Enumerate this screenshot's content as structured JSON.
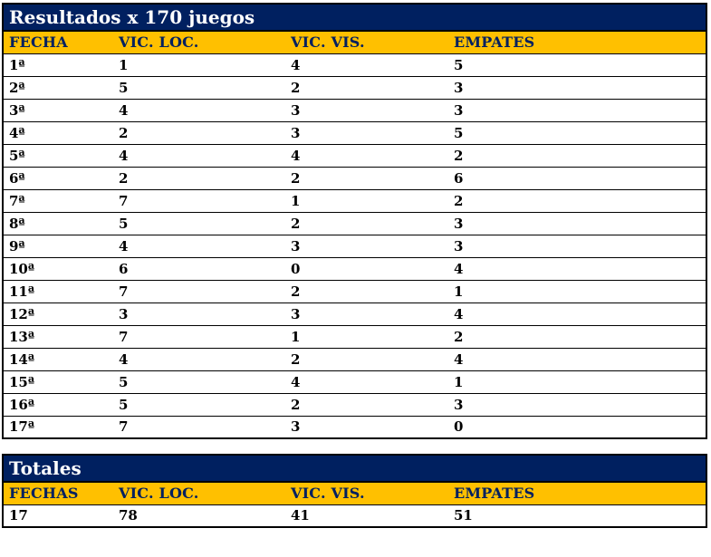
{
  "colors": {
    "navy": "#002060",
    "gold": "#FFC000",
    "border": "#000000",
    "title_text": "#FFFFFF",
    "header_text": "#002060",
    "body_text": "#000000"
  },
  "results_table": {
    "title": "Resultados x 170 juegos",
    "columns": [
      "FECHA",
      "VIC. LOC.",
      "VIC. VIS.",
      "EMPATES"
    ],
    "rows": [
      {
        "fecha": "1ª",
        "vic_loc": "1",
        "vic_vis": "4",
        "empates": "5"
      },
      {
        "fecha": "2ª",
        "vic_loc": "5",
        "vic_vis": "2",
        "empates": "3"
      },
      {
        "fecha": "3ª",
        "vic_loc": "4",
        "vic_vis": "3",
        "empates": "3"
      },
      {
        "fecha": "4ª",
        "vic_loc": "2",
        "vic_vis": "3",
        "empates": "5"
      },
      {
        "fecha": "5ª",
        "vic_loc": "4",
        "vic_vis": "4",
        "empates": "2"
      },
      {
        "fecha": "6ª",
        "vic_loc": "2",
        "vic_vis": "2",
        "empates": "6"
      },
      {
        "fecha": "7ª",
        "vic_loc": "7",
        "vic_vis": "1",
        "empates": "2"
      },
      {
        "fecha": "8ª",
        "vic_loc": "5",
        "vic_vis": "2",
        "empates": "3"
      },
      {
        "fecha": "9ª",
        "vic_loc": "4",
        "vic_vis": "3",
        "empates": "3"
      },
      {
        "fecha": "10ª",
        "vic_loc": "6",
        "vic_vis": "0",
        "empates": "4"
      },
      {
        "fecha": "11ª",
        "vic_loc": "7",
        "vic_vis": "2",
        "empates": "1"
      },
      {
        "fecha": "12ª",
        "vic_loc": "3",
        "vic_vis": "3",
        "empates": "4"
      },
      {
        "fecha": "13ª",
        "vic_loc": "7",
        "vic_vis": "1",
        "empates": "2"
      },
      {
        "fecha": "14ª",
        "vic_loc": "4",
        "vic_vis": "2",
        "empates": "4"
      },
      {
        "fecha": "15ª",
        "vic_loc": "5",
        "vic_vis": "4",
        "empates": "1"
      },
      {
        "fecha": "16ª",
        "vic_loc": "5",
        "vic_vis": "2",
        "empates": "3"
      },
      {
        "fecha": "17ª",
        "vic_loc": "7",
        "vic_vis": "3",
        "empates": "0"
      }
    ]
  },
  "totals_table": {
    "title": "Totales",
    "columns": [
      "FECHAS",
      "VIC. LOC.",
      "VIC. VIS.",
      "EMPATES"
    ],
    "row": {
      "fechas": "17",
      "vic_loc": "78",
      "vic_vis": "41",
      "empates": "51"
    }
  }
}
